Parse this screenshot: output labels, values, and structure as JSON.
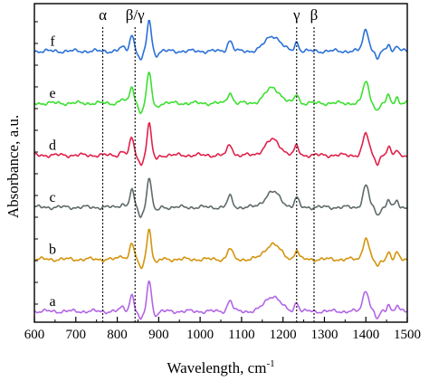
{
  "chart_data": {
    "type": "line",
    "xlabel": "Wavelength, cm",
    "xlabel_sup": "-1",
    "ylabel": "Absorbance, a.u.",
    "xlim": [
      600,
      1500
    ],
    "x_ticks": [
      600,
      700,
      800,
      900,
      1000,
      1100,
      1200,
      1300,
      1400,
      1500
    ],
    "y_ticks_visible": false,
    "grid": false,
    "markers": [
      {
        "x": 765,
        "label": "α"
      },
      {
        "x": 843,
        "label": "β/γ"
      },
      {
        "x": 1233,
        "label": "γ"
      },
      {
        "x": 1275,
        "label": "β"
      }
    ],
    "series": [
      {
        "name": "a",
        "color": "#b266e6",
        "offset": 0.0
      },
      {
        "name": "b",
        "color": "#d4940c",
        "offset": 1.0
      },
      {
        "name": "c",
        "color": "#5f6b6b",
        "offset": 2.0
      },
      {
        "name": "d",
        "color": "#e0204a",
        "offset": 3.0
      },
      {
        "name": "e",
        "color": "#3ce030",
        "offset": 4.0
      },
      {
        "name": "f",
        "color": "#2a70d8",
        "offset": 5.0
      }
    ],
    "peaks": [
      {
        "x": 812,
        "h": 0.12,
        "w": 6
      },
      {
        "x": 835,
        "h": 0.55,
        "w": 5
      },
      {
        "x": 857,
        "h": -0.3,
        "w": 5
      },
      {
        "x": 877,
        "h": 1.0,
        "w": 5
      },
      {
        "x": 895,
        "h": -0.12,
        "w": 5
      },
      {
        "x": 1072,
        "h": 0.35,
        "w": 6
      },
      {
        "x": 1175,
        "h": 0.5,
        "w": 18
      },
      {
        "x": 1233,
        "h": 0.3,
        "w": 5
      },
      {
        "x": 1400,
        "h": 0.7,
        "w": 7
      },
      {
        "x": 1428,
        "h": -0.25,
        "w": 5
      },
      {
        "x": 1455,
        "h": 0.25,
        "w": 4
      },
      {
        "x": 1475,
        "h": 0.2,
        "w": 4
      }
    ]
  }
}
